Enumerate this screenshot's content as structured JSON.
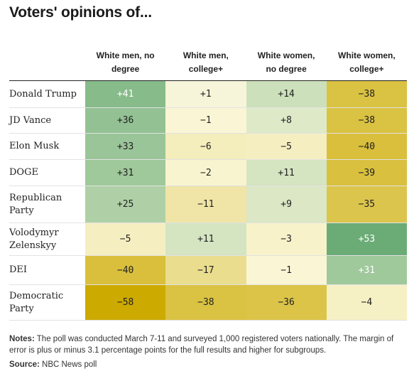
{
  "title": "Voters' opinions of...",
  "chart_data": {
    "type": "heatmap",
    "columns": [
      {
        "line1": "White men, no",
        "line2": "degree"
      },
      {
        "line1": "White men,",
        "line2": "college+"
      },
      {
        "line1": "White women,",
        "line2": "no degree"
      },
      {
        "line1": "White women,",
        "line2": "college+"
      }
    ],
    "rows": [
      {
        "line1": "Donald Trump",
        "line2": "",
        "values": [
          41,
          1,
          14,
          -38
        ]
      },
      {
        "line1": "JD Vance",
        "line2": "",
        "values": [
          36,
          -1,
          8,
          -38
        ]
      },
      {
        "line1": "Elon Musk",
        "line2": "",
        "values": [
          33,
          -6,
          -5,
          -40
        ]
      },
      {
        "line1": "DOGE",
        "line2": "",
        "values": [
          31,
          -2,
          11,
          -39
        ]
      },
      {
        "line1": "Republican",
        "line2": "Party",
        "values": [
          25,
          -11,
          9,
          -35
        ]
      },
      {
        "line1": "Volodymyr",
        "line2": "Zelenskyy",
        "values": [
          -5,
          11,
          -3,
          53
        ]
      },
      {
        "line1": "DEI",
        "line2": "",
        "values": [
          -40,
          -17,
          -1,
          31
        ]
      },
      {
        "line1": "Democratic",
        "line2": "Party",
        "values": [
          -58,
          -38,
          -36,
          -4
        ]
      }
    ],
    "color_scale": {
      "positive_max": "#5fa66e",
      "neutral": "#fbf8dc",
      "negative_max": "#ccaa00"
    }
  },
  "notes": {
    "notes_label": "Notes:",
    "notes_text": "The poll was conducted March 7-11 and surveyed 1,000 registered voters nationally. The margin of error is plus or minus 3.1 percentage points for the full results and higher for subgroups.",
    "source_label": "Source:",
    "source_text": "NBC News poll"
  }
}
